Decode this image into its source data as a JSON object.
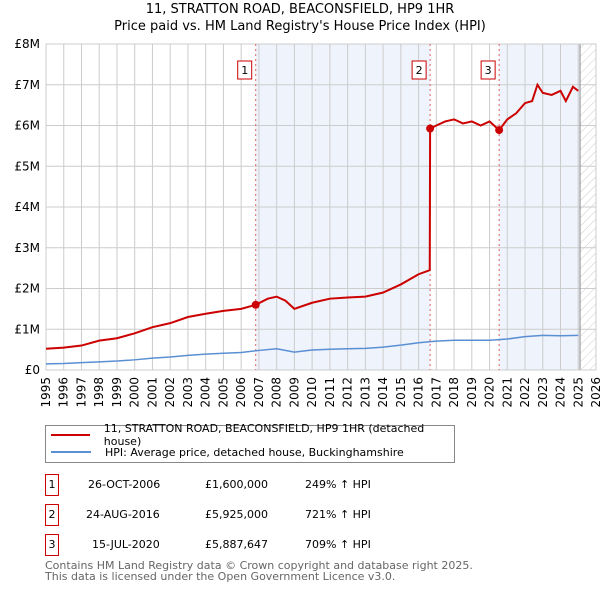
{
  "chart_data": {
    "type": "line",
    "title": "11, STRATTON ROAD, BEACONSFIELD, HP9 1HR",
    "subtitle": "Price paid vs. HM Land Registry's House Price Index (HPI)",
    "xlim": [
      1995,
      2026
    ],
    "ylim": [
      0,
      8000000
    ],
    "y_ticks": [
      {
        "v": 0,
        "label": "£0"
      },
      {
        "v": 1000000,
        "label": "£1M"
      },
      {
        "v": 2000000,
        "label": "£2M"
      },
      {
        "v": 3000000,
        "label": "£3M"
      },
      {
        "v": 4000000,
        "label": "£4M"
      },
      {
        "v": 5000000,
        "label": "£5M"
      },
      {
        "v": 6000000,
        "label": "£6M"
      },
      {
        "v": 7000000,
        "label": "£7M"
      },
      {
        "v": 8000000,
        "label": "£8M"
      }
    ],
    "x_ticks": [
      "1995",
      "1996",
      "1997",
      "1998",
      "1999",
      "2000",
      "2001",
      "2002",
      "2003",
      "2004",
      "2005",
      "2006",
      "2007",
      "2008",
      "2009",
      "2010",
      "2011",
      "2012",
      "2013",
      "2014",
      "2015",
      "2016",
      "2017",
      "2018",
      "2019",
      "2020",
      "2021",
      "2022",
      "2023",
      "2024",
      "2025",
      "2026"
    ],
    "grid": true,
    "series": [
      {
        "name": "11, STRATTON ROAD, BEACONSFIELD, HP9 1HR (detached house)",
        "color": "#cc0000",
        "x": [
          1995,
          1996,
          1997,
          1998,
          1999,
          2000,
          2001,
          2002,
          2003,
          2004,
          2005,
          2006,
          2006.82,
          2007.5,
          2008,
          2008.5,
          2009,
          2010,
          2011,
          2012,
          2013,
          2014,
          2015,
          2016,
          2016.63,
          2016.65,
          2017,
          2017.5,
          2018,
          2018.5,
          2019,
          2019.5,
          2020,
          2020.54,
          2021,
          2021.5,
          2022,
          2022.4,
          2022.7,
          2023,
          2023.5,
          2024,
          2024.3,
          2024.7,
          2025
        ],
        "y": [
          520000,
          550000,
          600000,
          720000,
          780000,
          900000,
          1050000,
          1150000,
          1300000,
          1380000,
          1450000,
          1500000,
          1600000,
          1750000,
          1800000,
          1700000,
          1500000,
          1650000,
          1750000,
          1780000,
          1800000,
          1900000,
          2100000,
          2350000,
          2450000,
          5925000,
          6000000,
          6100000,
          6150000,
          6050000,
          6100000,
          6000000,
          6100000,
          5887647,
          6150000,
          6300000,
          6550000,
          6600000,
          7000000,
          6800000,
          6750000,
          6850000,
          6600000,
          6950000,
          6850000
        ]
      },
      {
        "name": "HPI: Average price, detached house, Buckinghamshire",
        "color": "#5b8fd4",
        "x": [
          1995,
          1996,
          1997,
          1998,
          1999,
          2000,
          2001,
          2002,
          2003,
          2004,
          2005,
          2006,
          2007,
          2008,
          2009,
          2010,
          2011,
          2012,
          2013,
          2014,
          2015,
          2016,
          2017,
          2018,
          2019,
          2020,
          2021,
          2022,
          2023,
          2024,
          2025
        ],
        "y": [
          150000,
          160000,
          180000,
          200000,
          220000,
          250000,
          290000,
          320000,
          360000,
          390000,
          410000,
          430000,
          480000,
          520000,
          440000,
          490000,
          510000,
          520000,
          530000,
          560000,
          610000,
          670000,
          710000,
          730000,
          730000,
          730000,
          760000,
          820000,
          850000,
          840000,
          850000
        ]
      }
    ],
    "sales": [
      {
        "n": "1",
        "x": 2006.82,
        "y": 1600000,
        "date": "26-OCT-2006",
        "price": "£1,600,000",
        "hpi": "249% ↑ HPI"
      },
      {
        "n": "2",
        "x": 2016.65,
        "y": 5925000,
        "date": "24-AUG-2016",
        "price": "£5,925,000",
        "hpi": "721% ↑ HPI"
      },
      {
        "n": "3",
        "x": 2020.54,
        "y": 5887647,
        "date": "15-JUL-2020",
        "price": "£5,887,647",
        "hpi": "709% ↑ HPI"
      }
    ],
    "forecast_from": 2025.1
  },
  "footer": {
    "line1": "Contains HM Land Registry data © Crown copyright and database right 2025.",
    "line2": "This data is licensed under the Open Government Licence v3.0."
  }
}
